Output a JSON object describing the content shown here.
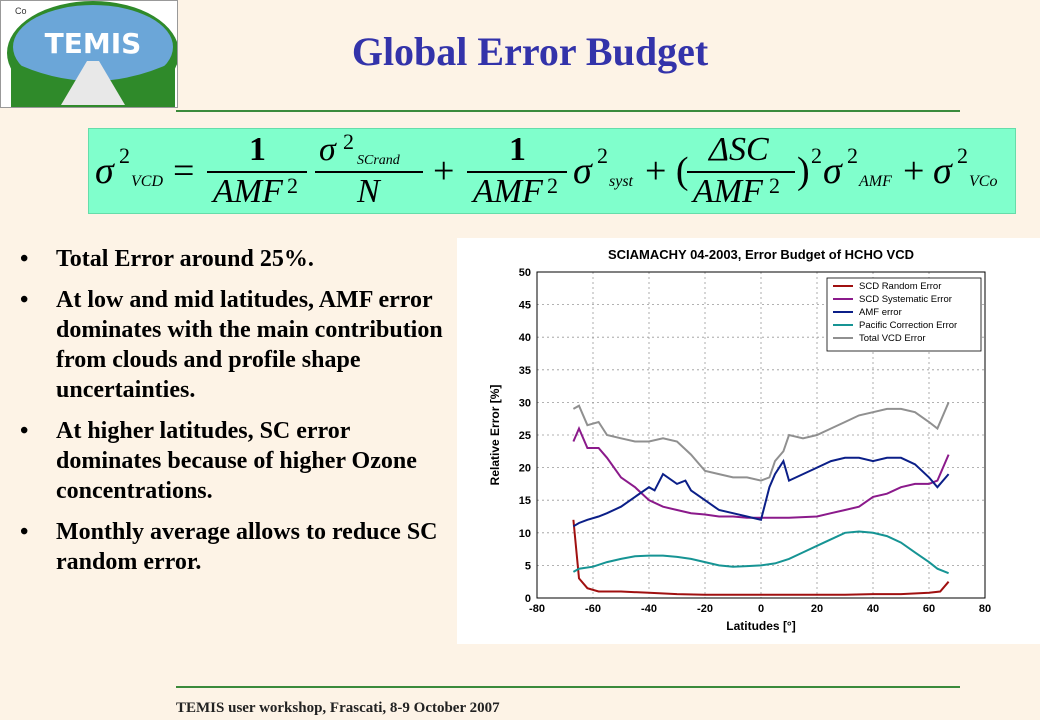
{
  "logo": {
    "caption": "Co",
    "text": "TEMIS"
  },
  "slide": {
    "title": "Global Error Budget"
  },
  "bullets": [
    {
      "text": "Total Error around 25%."
    },
    {
      "text": "At low and mid latitudes, AMF error dominates with the main contribution from clouds and profile shape uncertainties."
    },
    {
      "text": "At higher latitudes, SC error dominates because of higher Ozone concentrations."
    },
    {
      "text": "Monthly average allows to reduce SC random error."
    }
  ],
  "footer": {
    "text": "TEMIS user workshop, Frascati, 8-9 October 2007"
  },
  "colors": {
    "title": "#3333aa",
    "formula_bg": "#80ffcc",
    "rule": "#3b8a3b",
    "background": "#fdf3e6"
  },
  "chart_data": {
    "type": "line",
    "title": "SCIAMACHY 04-2003, Error Budget of HCHO VCD",
    "xlabel": "Latitudes [°]",
    "ylabel": "Relative Error [%]",
    "xlim": [
      -80,
      80
    ],
    "ylim": [
      0,
      50
    ],
    "xticks": [
      -80,
      -60,
      -40,
      -20,
      0,
      20,
      40,
      60,
      80
    ],
    "yticks": [
      0,
      5,
      10,
      15,
      20,
      25,
      30,
      35,
      40,
      45,
      50
    ],
    "grid": true,
    "legend_position": "top-right",
    "series": [
      {
        "name": "SCD Random Error",
        "color": "#a01010",
        "x": [
          -67,
          -65,
          -62,
          -58,
          -50,
          -40,
          -30,
          -20,
          -10,
          0,
          10,
          20,
          30,
          40,
          50,
          60,
          64,
          67
        ],
        "y": [
          12,
          3,
          1.5,
          1,
          1,
          0.8,
          0.6,
          0.5,
          0.5,
          0.5,
          0.5,
          0.5,
          0.5,
          0.6,
          0.6,
          0.8,
          1,
          2.5
        ]
      },
      {
        "name": "SCD Systematic Error",
        "color": "#8b1a8b",
        "x": [
          -67,
          -65,
          -62,
          -58,
          -55,
          -50,
          -45,
          -40,
          -35,
          -30,
          -25,
          -20,
          -15,
          -10,
          -5,
          0,
          10,
          20,
          25,
          30,
          35,
          40,
          45,
          50,
          55,
          60,
          63,
          67
        ],
        "y": [
          24,
          26,
          23,
          23,
          21.5,
          18.5,
          17,
          15,
          14,
          13.5,
          13,
          12.8,
          12.5,
          12.5,
          12.3,
          12.3,
          12.3,
          12.5,
          13,
          13.5,
          14,
          15.5,
          16,
          17,
          17.5,
          17.5,
          18,
          22
        ]
      },
      {
        "name": "AMF error",
        "color": "#0b1f88",
        "x": [
          -67,
          -65,
          -62,
          -58,
          -55,
          -50,
          -45,
          -40,
          -38,
          -35,
          -30,
          -27,
          -25,
          -20,
          -15,
          -10,
          -5,
          0,
          3,
          5,
          8,
          10,
          15,
          20,
          25,
          30,
          35,
          40,
          45,
          50,
          55,
          60,
          63,
          67
        ],
        "y": [
          11,
          11.5,
          12,
          12.5,
          13,
          14,
          15.5,
          17,
          16.5,
          19,
          17.5,
          18,
          16.5,
          15,
          13.5,
          13,
          12.5,
          12,
          17,
          19,
          21,
          18,
          19,
          20,
          21,
          21.5,
          21.5,
          21,
          21.5,
          21.5,
          20.5,
          18.5,
          17,
          19
        ]
      },
      {
        "name": "Pacific Correction Error",
        "color": "#169494",
        "x": [
          -67,
          -65,
          -60,
          -55,
          -50,
          -45,
          -40,
          -35,
          -30,
          -25,
          -20,
          -15,
          -10,
          -5,
          0,
          5,
          10,
          15,
          20,
          25,
          30,
          35,
          40,
          45,
          50,
          55,
          60,
          63,
          67
        ],
        "y": [
          4,
          4.5,
          4.8,
          5.5,
          6,
          6.4,
          6.5,
          6.5,
          6.3,
          6,
          5.5,
          5,
          4.8,
          4.9,
          5,
          5.3,
          6,
          7,
          8,
          9,
          10,
          10.2,
          10,
          9.5,
          8.5,
          7,
          5.5,
          4.5,
          3.8
        ]
      },
      {
        "name": "Total VCD Error",
        "color": "#909090",
        "x": [
          -67,
          -65,
          -62,
          -58,
          -55,
          -50,
          -45,
          -40,
          -35,
          -30,
          -25,
          -20,
          -15,
          -10,
          -5,
          0,
          3,
          5,
          8,
          10,
          15,
          20,
          25,
          30,
          35,
          40,
          45,
          50,
          55,
          60,
          63,
          67
        ],
        "y": [
          29,
          29.5,
          26.5,
          27,
          25,
          24.5,
          24,
          24,
          24.5,
          24,
          22,
          19.5,
          19,
          18.5,
          18.5,
          18,
          18.5,
          21,
          22.5,
          25,
          24.5,
          25,
          26,
          27,
          28,
          28.5,
          29,
          29,
          28.5,
          27,
          26,
          30
        ]
      }
    ]
  }
}
